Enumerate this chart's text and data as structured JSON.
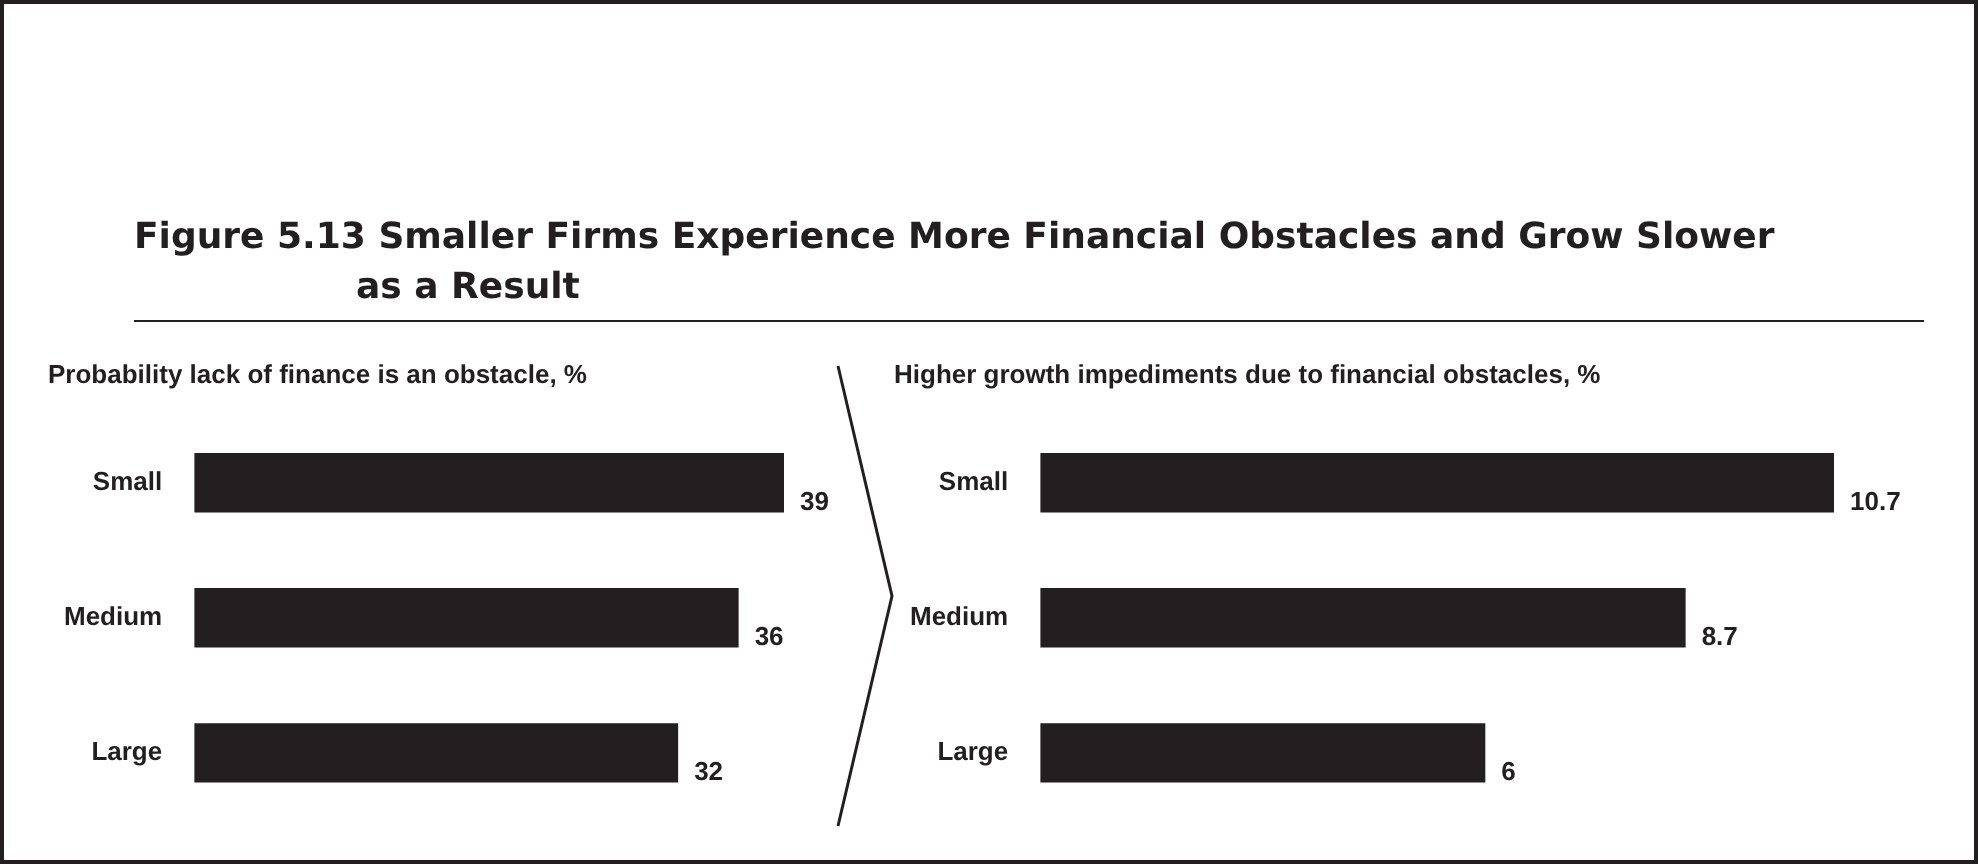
{
  "chart_data": [
    {
      "type": "bar",
      "orientation": "horizontal",
      "title": "Figure 5.13  Smaller Firms Experience More Financial Obstacles and Grow Slower as a Result",
      "subtitle": "Probability lack of finance is an obstacle, %",
      "categories": [
        "Small",
        "Medium",
        "Large"
      ],
      "values": [
        39,
        36,
        32
      ],
      "color": "#231f20",
      "data_labels": true,
      "grid": false,
      "legend": false,
      "tick_labels": "y"
    },
    {
      "type": "bar",
      "orientation": "horizontal",
      "title": "Higher growth impediments due to financial obstacles, %",
      "categories": [
        "Small",
        "Medium",
        "Large"
      ],
      "values": [
        10.7,
        8.7,
        6
      ],
      "color": "#231f20",
      "data_labels": true,
      "grid": false,
      "legend": false,
      "tick_labels": "y"
    }
  ]
}
